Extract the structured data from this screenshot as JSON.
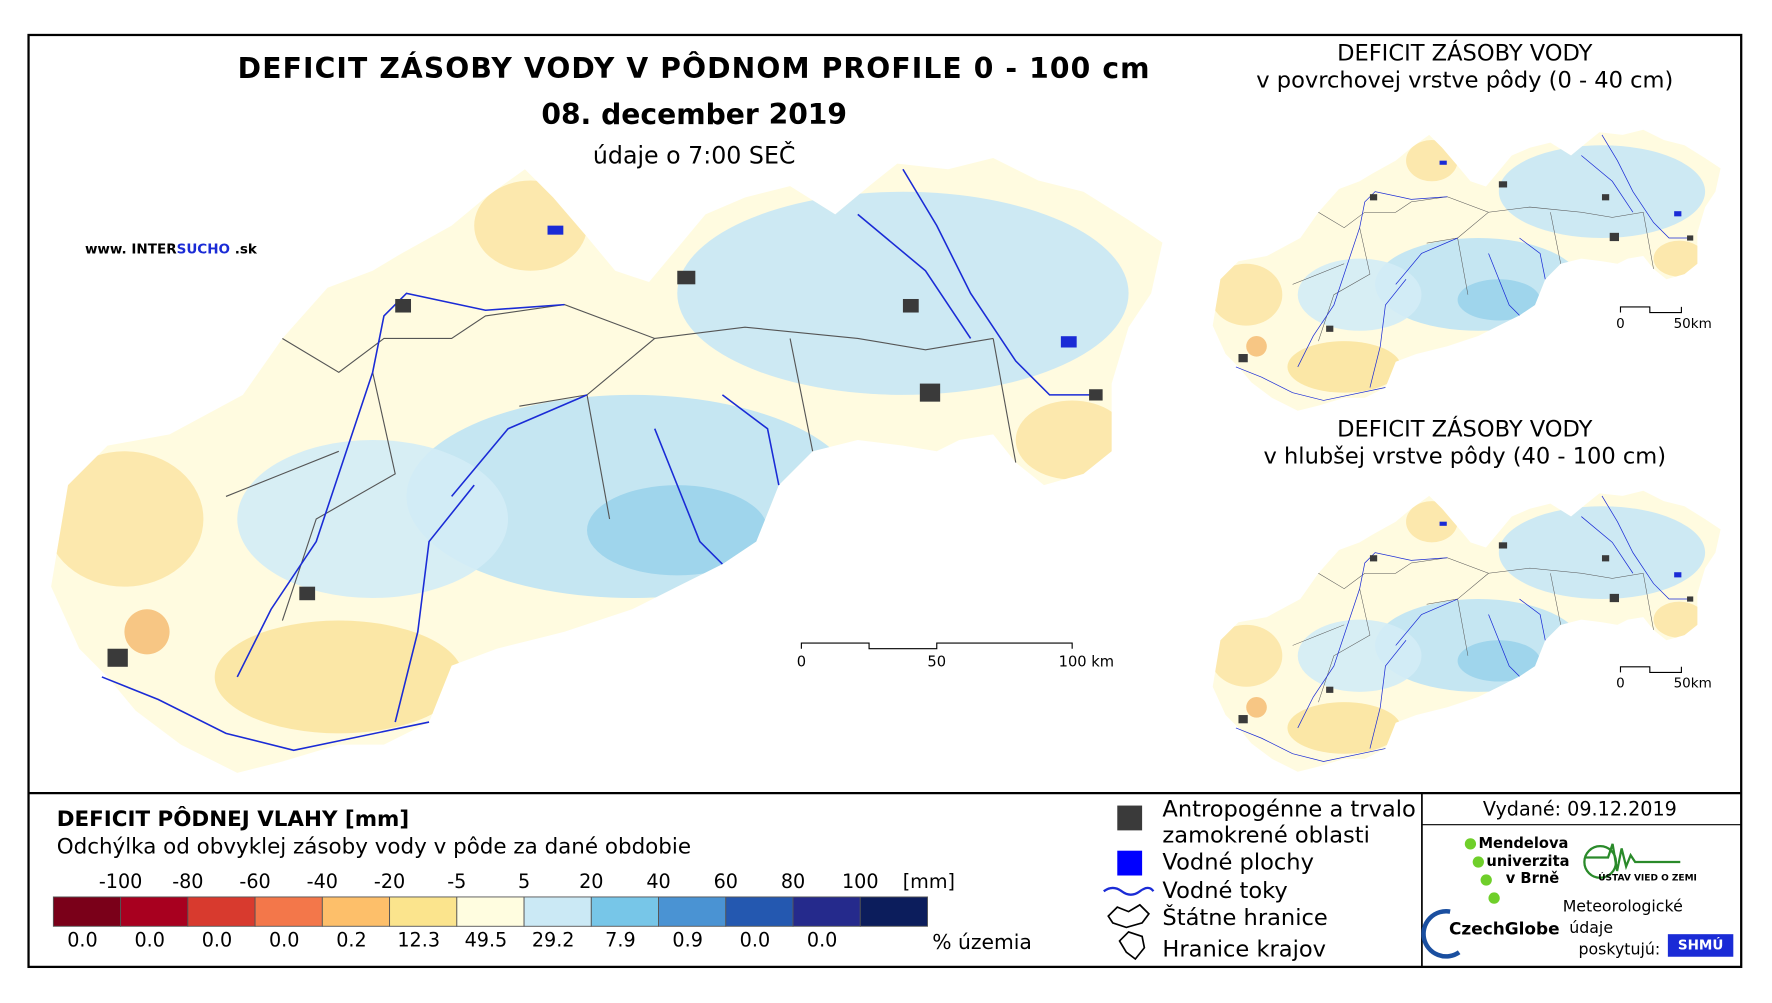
{
  "main_map": {
    "title": "DEFICIT ZÁSOBY VODY V PÔDNOM PROFILE 0 - 100 cm",
    "date": "08. december 2019",
    "time": "údaje o 7:00 SEČ",
    "website": {
      "prefix": "www.",
      "name_a": "INTER",
      "name_b": "SUCHO",
      "suffix": ".sk"
    },
    "scale": [
      "0",
      "50",
      "100 km"
    ]
  },
  "inset_maps": [
    {
      "title": "DEFICIT ZÁSOBY VODY",
      "subtitle": "v povrchovej vrstve pôdy (0 - 40 cm)",
      "scale": [
        "0",
        "50km"
      ]
    },
    {
      "title": "DEFICIT ZÁSOBY VODY",
      "subtitle": "v hlubšej vrstve pôdy (40 - 100 cm)",
      "scale": [
        "0",
        "50km"
      ]
    }
  ],
  "legend": {
    "title": "DEFICIT PÔDNEJ VLAHY [mm]",
    "subtitle": "Odchýlka od obvyklej zásoby vody v pôde za dané obdobie",
    "thresholds": [
      -100,
      -80,
      -60,
      -40,
      -20,
      -5,
      5,
      20,
      40,
      60,
      80,
      100
    ],
    "unit": "[mm]",
    "colors": [
      "#7a0019",
      "#a8001f",
      "#d83a2e",
      "#f3774a",
      "#fdbf6a",
      "#fbe48d",
      "#fffde0",
      "#cbe9f5",
      "#77c6e8",
      "#4a93d3",
      "#2458b0",
      "#252a8c",
      "#0c1d5c"
    ],
    "shares": [
      "0.0",
      "0.0",
      "0.0",
      "0.0",
      "0.2",
      "12.3",
      "49.5",
      "29.2",
      "7.9",
      "0.9",
      "0.0",
      "0.0"
    ],
    "shares_label": "% územia"
  },
  "symbols": [
    {
      "label": [
        "Antropogénne a trvalo",
        "zamokrené oblasti"
      ]
    },
    {
      "label": [
        "Vodné plochy"
      ]
    },
    {
      "label": [
        "Vodné toky"
      ]
    },
    {
      "label": [
        "Štátne hranice"
      ]
    },
    {
      "label": [
        "Hranice krajov"
      ]
    }
  ],
  "issued": "Vydané: 09.12.2019",
  "logos": {
    "mendel": [
      "Mendelova",
      "univerzita",
      "v Brně"
    ],
    "czechglobe": "CzechGlobe",
    "ustav": "ÚSTAV VIED O ZEMI",
    "meteo": [
      "Meteorologické",
      "údaje",
      "poskytujú:"
    ],
    "shmu": "SHMÚ"
  }
}
